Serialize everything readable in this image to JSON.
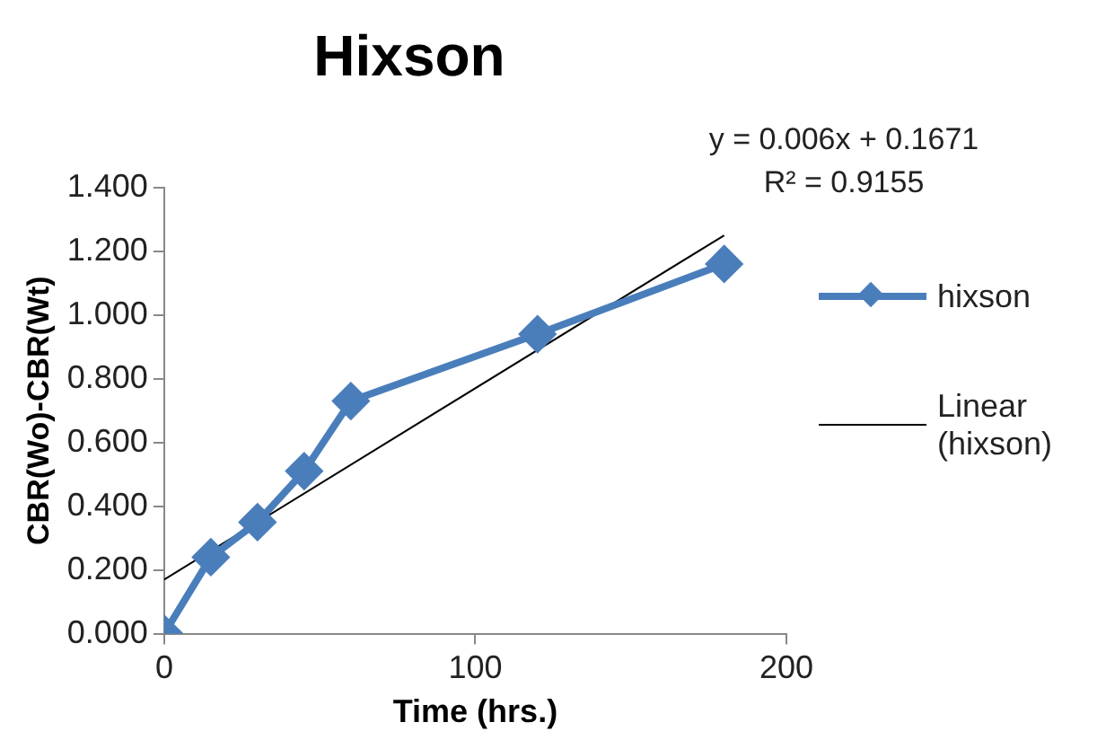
{
  "chart_data": {
    "type": "line",
    "title": "Hixson",
    "xlabel": "Time (hrs.)",
    "ylabel": "CBR(Wo)-CBR(Wt)",
    "xlim": [
      0,
      200
    ],
    "xticks": [
      0,
      100,
      200
    ],
    "ylim": [
      0,
      1.4
    ],
    "yticks": [
      {
        "value": 0,
        "label": "0.000"
      },
      {
        "value": 0.2,
        "label": "0.200"
      },
      {
        "value": 0.4,
        "label": "0.400"
      },
      {
        "value": 0.6,
        "label": "0.600"
      },
      {
        "value": 0.8,
        "label": "0.800"
      },
      {
        "value": 1,
        "label": "1.000"
      },
      {
        "value": 1.2,
        "label": "1.200"
      },
      {
        "value": 1.4,
        "label": "1.400"
      }
    ],
    "grid": false,
    "legend": "right",
    "series": [
      {
        "name": "hixson",
        "color": "#4a7ebb",
        "marker": "diamond",
        "x": [
          0,
          15,
          30,
          45,
          60,
          120,
          180
        ],
        "values": [
          0,
          0.24,
          0.35,
          0.51,
          0.73,
          0.94,
          1.16
        ]
      },
      {
        "name": "Linear (hixson)",
        "color": "#000000",
        "marker": "none",
        "x": [
          0,
          180
        ],
        "values": [
          0.17,
          1.25
        ]
      }
    ],
    "annotations": [
      "y = 0.006x + 0.1671",
      "R² = 0.9155"
    ]
  }
}
